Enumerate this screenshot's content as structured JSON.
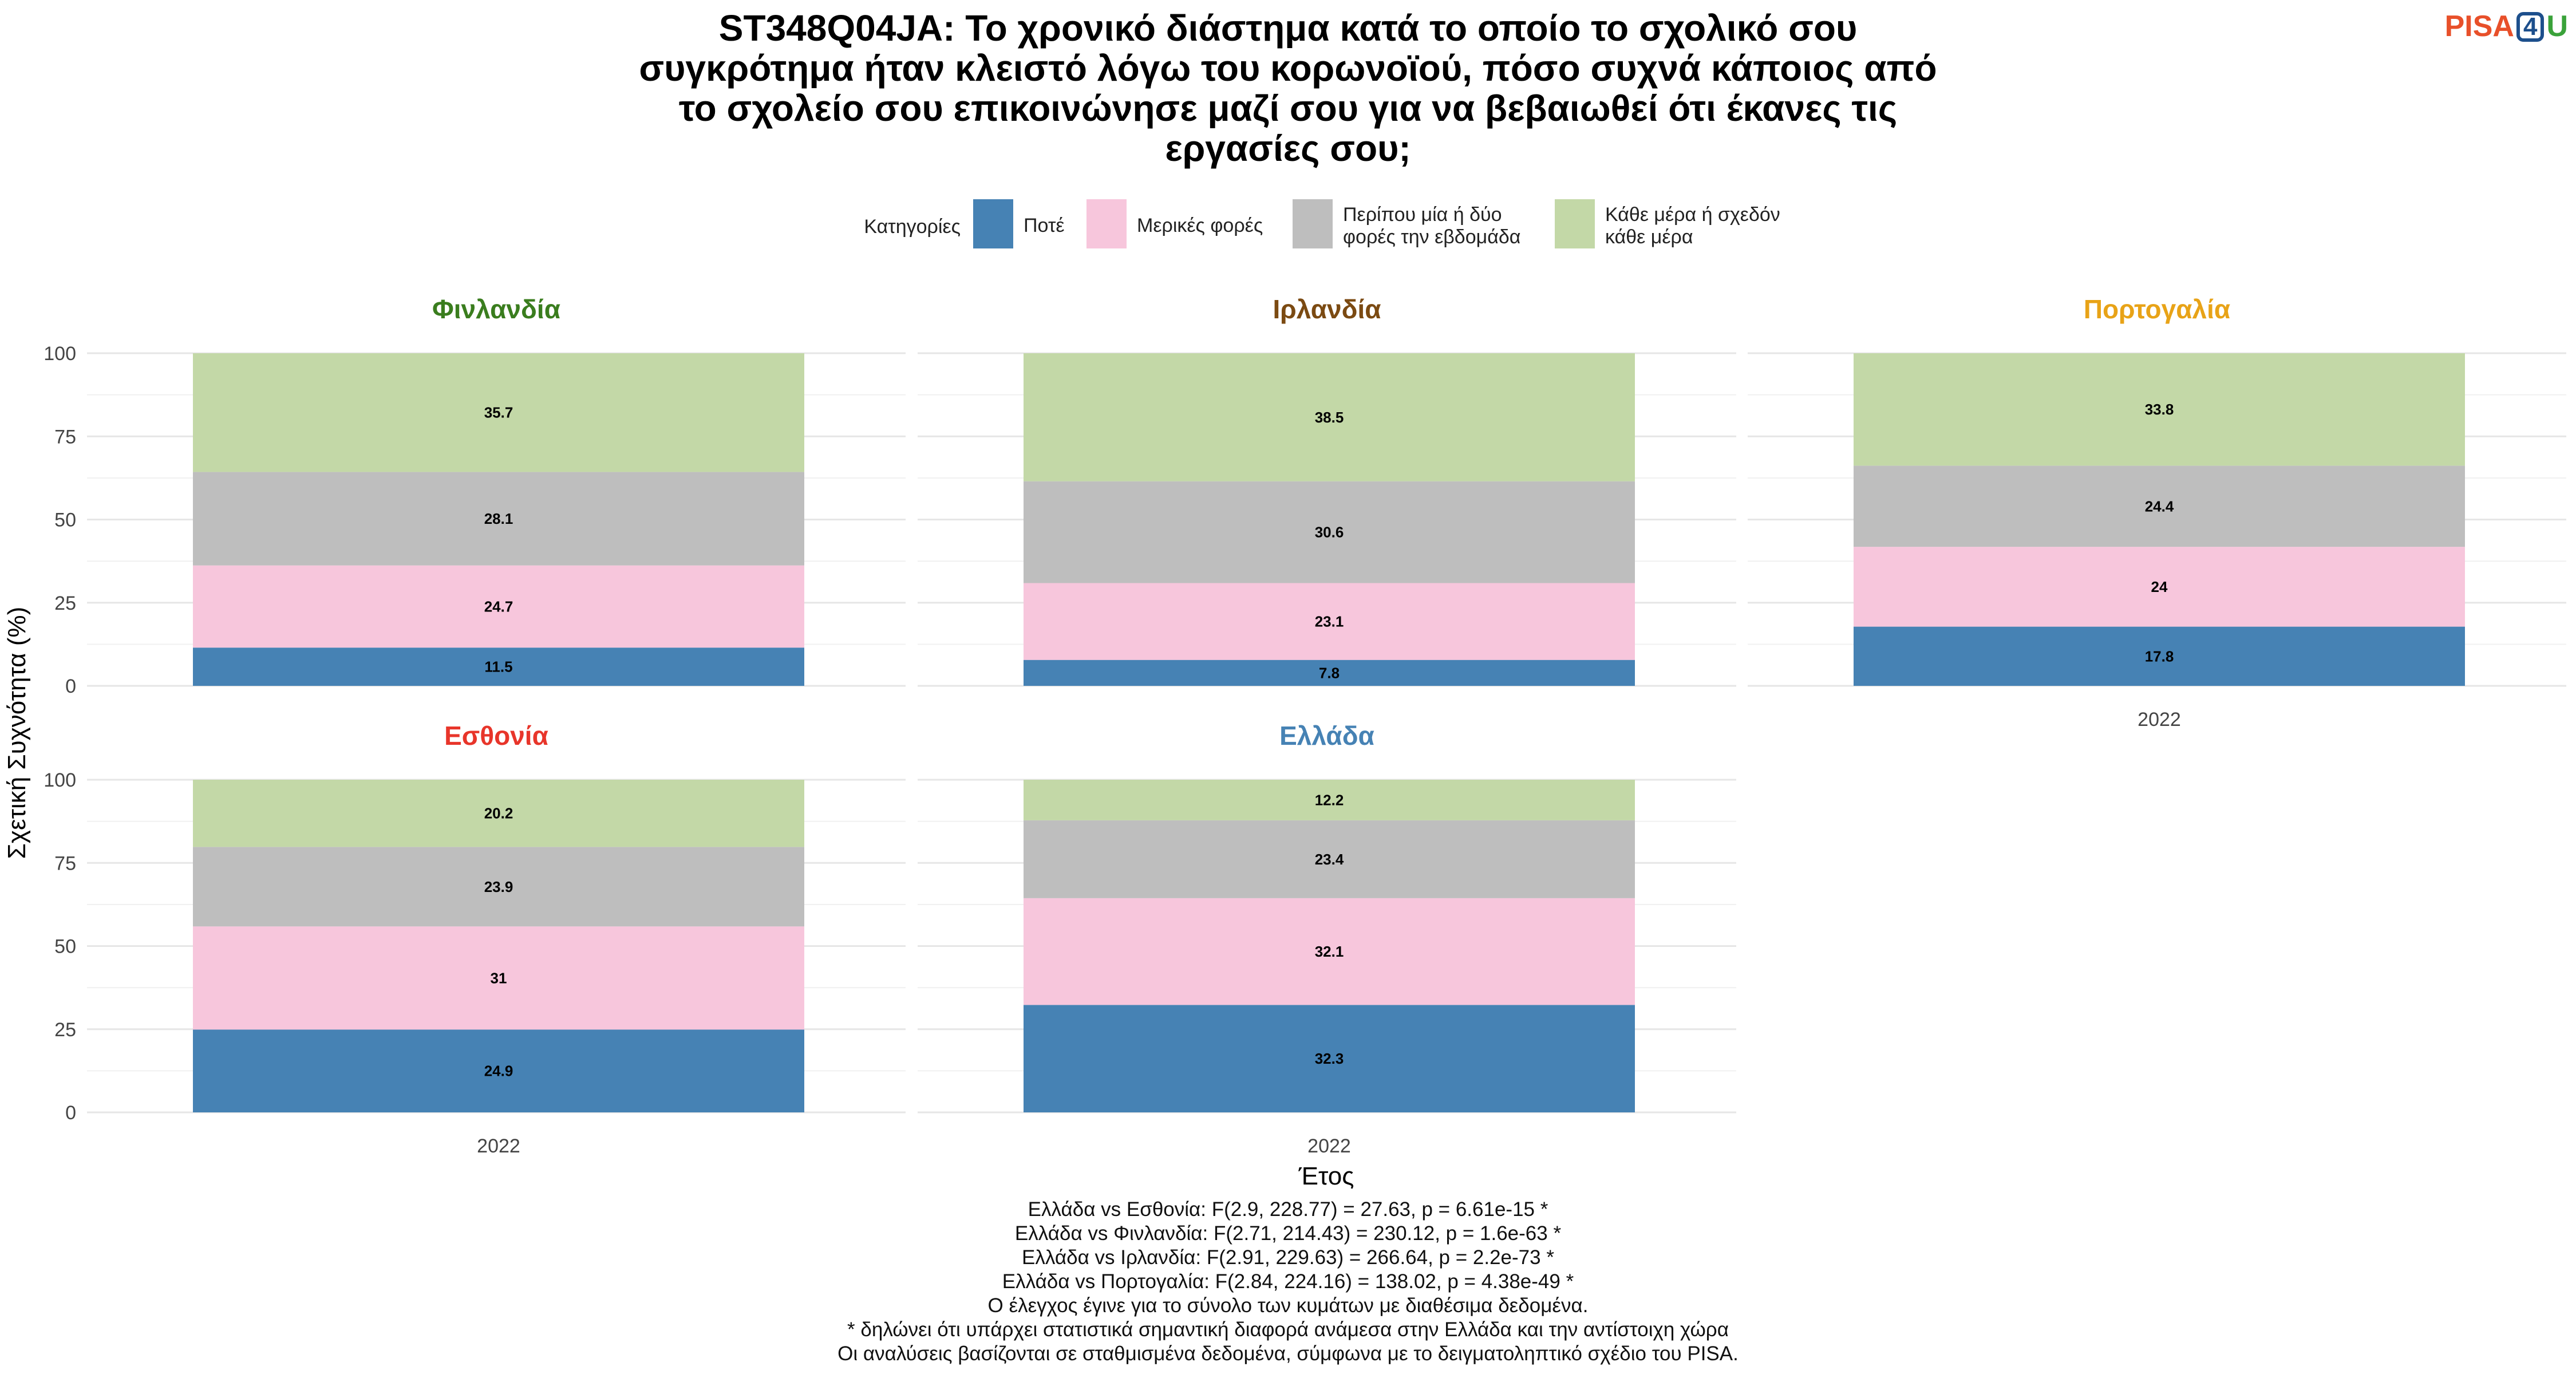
{
  "logo": {
    "p": "PISA",
    "n": "4",
    "u": "U"
  },
  "chart_data": {
    "type": "bar",
    "stacked": true,
    "title": [
      "ST348Q04JA: Το χρονικό διάστημα κατά το οποίο το σχολικό σου",
      "συγκρότημα ήταν κλειστό λόγω του κορωνοϊού, πόσο συχνά κάποιος από",
      "το σχολείο σου επικοινώνησε μαζί σου για να βεβαιωθεί ότι έκανες τις",
      "εργασίες σου;"
    ],
    "xlabel": "Έτος",
    "ylabel": "Σχετική Συχνότητα (%)",
    "ylim": [
      0,
      100
    ],
    "yticks": [
      "0",
      "25",
      "50",
      "75",
      "100"
    ],
    "legend": {
      "title": "Κατηγορίες",
      "position": "top",
      "items": [
        {
          "label": [
            "Ποτέ"
          ],
          "color": "#4682b4"
        },
        {
          "label": [
            "Μερικές φορές"
          ],
          "color": "#f7c6dc"
        },
        {
          "label": [
            "Περίπου μία ή δύο",
            "φορές την εβδομάδα"
          ],
          "color": "#bebebe"
        },
        {
          "label": [
            "Κάθε μέρα ή σχεδόν",
            "κάθε μέρα"
          ],
          "color": "#c3d8a7"
        }
      ]
    },
    "panels": [
      {
        "country": "Φινλανδία",
        "color": "#3a7d1e",
        "x": "2022",
        "values": [
          11.5,
          24.7,
          28.1,
          35.7
        ],
        "labels": [
          "11.5",
          "24.7",
          "28.1",
          "35.7"
        ]
      },
      {
        "country": "Ιρλανδία",
        "color": "#7b4a12",
        "x": "2022",
        "values": [
          7.8,
          23.1,
          30.6,
          38.5
        ],
        "labels": [
          "7.8",
          "23.1",
          "30.6",
          "38.5"
        ]
      },
      {
        "country": "Πορτογαλία",
        "color": "#e8a317",
        "x": "2022",
        "values": [
          17.8,
          24,
          24.4,
          33.8
        ],
        "labels": [
          "17.8",
          "24",
          "24.4",
          "33.8"
        ]
      },
      {
        "country": "Εσθονία",
        "color": "#e8352a",
        "x": "2022",
        "values": [
          24.9,
          31,
          23.9,
          20.2
        ],
        "labels": [
          "24.9",
          "31",
          "23.9",
          "20.2"
        ]
      },
      {
        "country": "Ελλάδα",
        "color": "#4682b4",
        "x": "2022",
        "values": [
          32.3,
          32.1,
          23.4,
          12.2
        ],
        "labels": [
          "32.3",
          "32.1",
          "23.4",
          "12.2"
        ]
      }
    ]
  },
  "footer": [
    "Ελλάδα vs Εσθονία: F(2.9, 228.77) = 27.63, p = 6.61e-15 *",
    "Ελλάδα vs Φινλανδία: F(2.71, 214.43) = 230.12, p = 1.6e-63 *",
    "Ελλάδα vs Ιρλανδία: F(2.91, 229.63) = 266.64, p = 2.2e-73 *",
    "Ελλάδα vs Πορτογαλία: F(2.84, 224.16) = 138.02, p = 4.38e-49 *",
    "Ο έλεγχος έγινε για το σύνολο των κυμάτων με διαθέσιμα δεδομένα.",
    "* δηλώνει ότι υπάρχει στατιστικά σημαντική διαφορά ανάμεσα στην Ελλάδα και την αντίστοιχη χώρα",
    "Οι αναλύσεις βασίζονται σε σταθμισμένα δεδομένα, σύμφωνα με το δειγματοληπτικό σχέδιο του PISA."
  ]
}
